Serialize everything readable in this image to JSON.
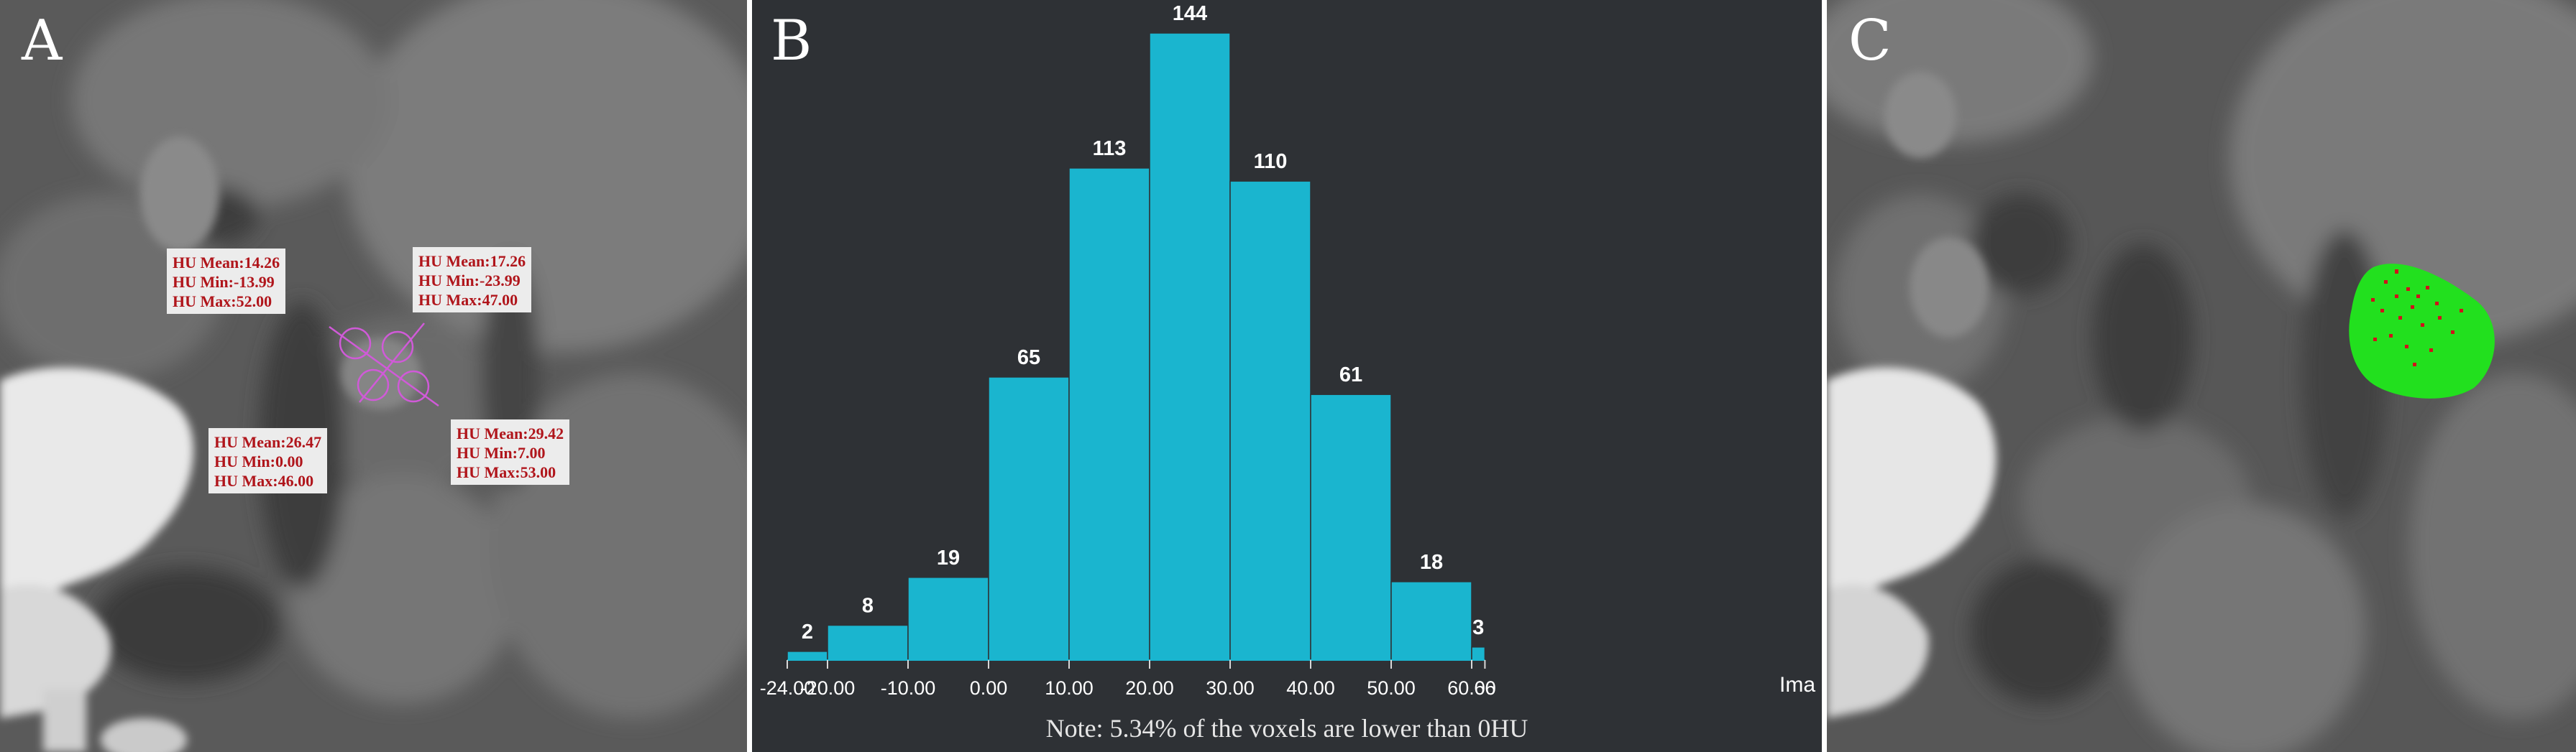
{
  "panels": {
    "a": {
      "letter": "A",
      "measurements": [
        {
          "mean": "HU Mean:14.26",
          "min": "HU Min:-13.99",
          "max": "HU Max:52.00"
        },
        {
          "mean": "HU Mean:17.26",
          "min": "HU Min:-23.99",
          "max": "HU Max:47.00"
        },
        {
          "mean": "HU Mean:26.47",
          "min": "HU Min:0.00",
          "max": "HU Max:46.00"
        },
        {
          "mean": "HU Mean:29.42",
          "min": "HU Min:7.00",
          "max": "HU Max:53.00"
        }
      ],
      "roi_color": "#d05ad8",
      "label_color": "#b0151b"
    },
    "b": {
      "letter": "B",
      "note": "Note: 5.34% of the voxels are lower than 0HU",
      "axis_cut_label": "Ima"
    },
    "c": {
      "letter": "C",
      "mask_color": "#22e01e",
      "negative_voxel_color": "#d0121a"
    }
  },
  "chart_data": {
    "type": "bar",
    "categories": [
      "-24.00 to -20.00",
      "-20.00 to -10.00",
      "-10.00 to 0.00",
      "0.00 to 10.00",
      "10.00 to 20.00",
      "20.00 to 30.00",
      "30.00 to 40.00",
      "40.00 to 50.00",
      "50.00 to 60.00",
      "60.00 to 66"
    ],
    "bin_edges": [
      -24,
      -20,
      -10,
      0,
      10,
      20,
      30,
      40,
      50,
      60,
      66
    ],
    "values": [
      2,
      8,
      19,
      65,
      113,
      144,
      110,
      61,
      18,
      3
    ],
    "x_tick_labels": [
      "-24.00",
      "-20.00",
      "-10.00",
      "0.00",
      "10.00",
      "20.00",
      "30.00",
      "40.00",
      "50.00",
      "60.00",
      "66"
    ],
    "ylim": [
      0,
      144
    ],
    "bar_color": "#1ab5cf",
    "background": "#2e3135",
    "grid": false,
    "title": "",
    "xlabel": "",
    "ylabel": ""
  }
}
